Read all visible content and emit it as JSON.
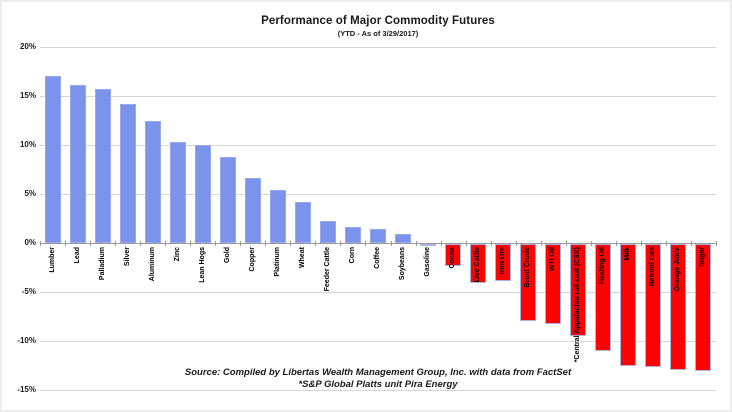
{
  "title": "Performance of Major Commodity Futures",
  "subtitle": "(YTD - As of 3/29/2017)",
  "source": {
    "line1": "Source:  Compiled by Libertas Wealth Management Group, Inc. with data from FactSet",
    "line2": "*S&P Global Platts unit Pira Energy"
  },
  "colors": {
    "positive_bar": "#7b93ea",
    "negative_bar": "#fe0303",
    "gridline": "#d6d6d6",
    "axis": "#9a9a9a",
    "text": "#1a1a1a"
  },
  "chart_data": {
    "type": "bar",
    "title": "Performance of Major Commodity Futures",
    "subtitle": "(YTD - As of 3/29/2017)",
    "xlabel": "",
    "ylabel": "",
    "ylim": [
      -15,
      20
    ],
    "grid": true,
    "legend": false,
    "bar_color_rule": "blue if positive, red if negative",
    "yticks": [
      {
        "label": "20%",
        "value": 20
      },
      {
        "label": "15%",
        "value": 15
      },
      {
        "label": "10%",
        "value": 10
      },
      {
        "label": "5%",
        "value": 5
      },
      {
        "label": "0%",
        "value": 0
      },
      {
        "label": "-5%",
        "value": -5
      },
      {
        "label": "-10%",
        "value": -10
      },
      {
        "label": "-15%",
        "value": -15
      }
    ],
    "categories": [
      "Lumber",
      "Lead",
      "Palladium",
      "Silver",
      "Aluminum",
      "Zinc",
      "Lean Hogs",
      "Gold",
      "Copper",
      "Platinum",
      "Wheat",
      "Feeder Cattle",
      "Corn",
      "Coffee",
      "Soybeans",
      "Gasoline",
      "Cocoa",
      "Live Cattle",
      "Iron Ore",
      "Brent Crude",
      "WTI Oil",
      "*Central Appalachia rail coal (CSX)",
      "Heating Oil",
      "Milk",
      "Natural Gas",
      "Orange Juice",
      "Sugar"
    ],
    "values": [
      17.0,
      16.1,
      15.7,
      14.2,
      12.4,
      10.3,
      10.0,
      8.8,
      6.6,
      5.4,
      4.2,
      2.2,
      1.6,
      1.4,
      0.9,
      -0.2,
      -2.2,
      -4.0,
      -3.8,
      -7.9,
      -8.2,
      -9.4,
      -10.9,
      -12.4,
      -12.6,
      -12.9,
      -13.0
    ]
  }
}
